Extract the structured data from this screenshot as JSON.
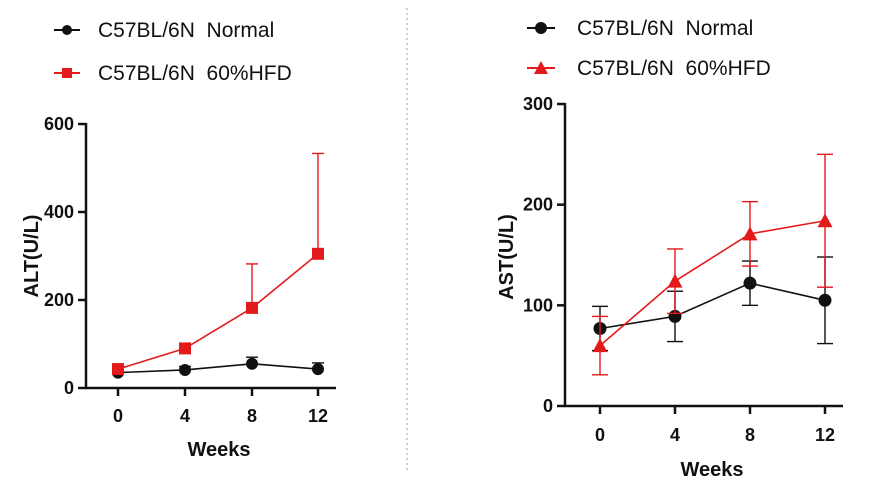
{
  "colors": {
    "normal": "#111111",
    "hfd": "#e31a1c",
    "divider": "#999999"
  },
  "chart_data": [
    {
      "type": "line",
      "id": "alt",
      "ylabel": "ALT(U/L)",
      "xlabel": "Weeks",
      "x": [
        0,
        4,
        8,
        12
      ],
      "categories": [
        "0",
        "4",
        "8",
        "12"
      ],
      "ylim": [
        0,
        600
      ],
      "yticks": [
        0,
        200,
        400,
        600
      ],
      "yticklabels": [
        "0",
        "200",
        "400",
        "600"
      ],
      "series": [
        {
          "name": "C57BL/6N  Normal",
          "marker": "circle",
          "color": "#111111",
          "values": [
            35,
            41,
            55,
            43
          ],
          "err": [
            6,
            8,
            15,
            14
          ]
        },
        {
          "name": "C57BL/6N  60%HFD",
          "marker": "square",
          "color": "#e31a1c",
          "values": [
            43,
            90,
            182,
            305
          ],
          "err": [
            6,
            8,
            100,
            228
          ]
        }
      ]
    },
    {
      "type": "line",
      "id": "ast",
      "ylabel": "AST(U/L)",
      "xlabel": "Weeks",
      "x": [
        0,
        4,
        8,
        12
      ],
      "categories": [
        "0",
        "4",
        "8",
        "12"
      ],
      "ylim": [
        0,
        300
      ],
      "yticks": [
        0,
        100,
        200,
        300
      ],
      "yticklabels": [
        "0",
        "100",
        "200",
        "300"
      ],
      "series": [
        {
          "name": "C57BL/6N  Normal",
          "marker": "circle",
          "color": "#111111",
          "values": [
            77,
            89,
            122,
            105
          ],
          "err": [
            22,
            25,
            22,
            43
          ]
        },
        {
          "name": "C57BL/6N  60%HFD",
          "marker": "triangle",
          "color": "#e31a1c",
          "values": [
            60,
            124,
            171,
            184
          ],
          "err": [
            29,
            32,
            32,
            66
          ]
        }
      ]
    }
  ]
}
